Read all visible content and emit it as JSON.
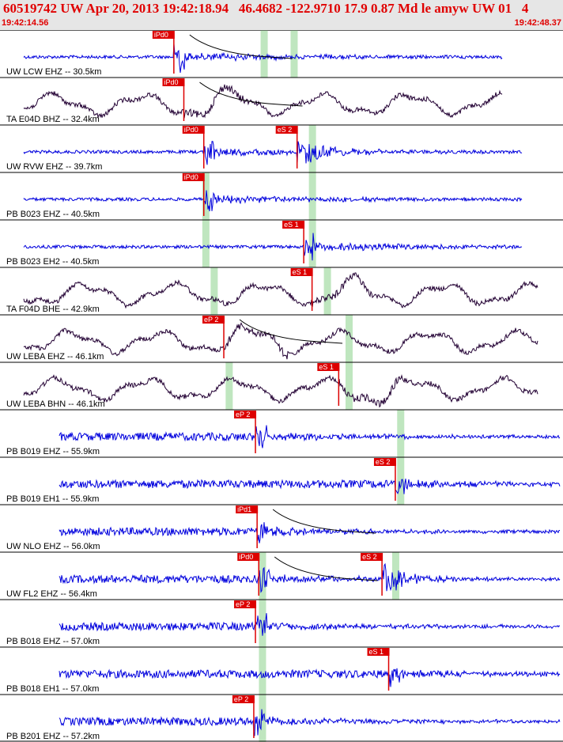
{
  "header": {
    "title": "60519742 UW Apr 20, 2013 19:42:18.94   46.4682 -122.9710 17.9 0.87 Md le amyw UW 01   4",
    "time_start": "19:42:14.56",
    "time_end": "19:42:48.37"
  },
  "colors": {
    "header_text": "#e00000",
    "header_bg": "#e6e6e6",
    "trace_vertical": "#0000dd",
    "trace_horizontal": "#220033",
    "pick": "#dd0000",
    "window": "#bfe6bf"
  },
  "chart_data": {
    "type": "line",
    "x_range_seconds": [
      14.56,
      48.37
    ],
    "traces": [
      {
        "label": "UW LCW EHZ -- 30.5km",
        "component": "vertical",
        "p_label": "iPd0",
        "p_time": 25.0,
        "s_label": "",
        "s_time": null,
        "windows": [
          30.4,
          32.2
        ],
        "coda": true
      },
      {
        "label": "TA E04D BHZ -- 32.4km",
        "component": "horizontal",
        "p_label": "iPd0",
        "p_time": 25.6,
        "s_label": "",
        "s_time": null,
        "windows": [],
        "coda": true
      },
      {
        "label": "UW RVW EHZ -- 39.7km",
        "component": "vertical",
        "p_label": "iPd0",
        "p_time": 26.8,
        "s_label": "eS 2",
        "s_time": 32.4,
        "windows": [
          33.3
        ],
        "coda": false
      },
      {
        "label": "PB B023 EHZ -- 40.5km",
        "component": "vertical",
        "p_label": "iPd0",
        "p_time": 26.8,
        "s_label": "",
        "s_time": null,
        "windows": [
          26.9,
          33.3
        ],
        "coda": false
      },
      {
        "label": "PB B023 EH2 -- 40.5km",
        "component": "horizontal_blue",
        "p_label": "eS 1",
        "p_time": 32.8,
        "s_label": "",
        "s_time": null,
        "windows": [
          26.9,
          33.3
        ],
        "coda": false
      },
      {
        "label": "TA F04D BHE -- 42.9km",
        "component": "horizontal",
        "p_label": "eS 1",
        "p_time": 33.3,
        "s_label": "",
        "s_time": null,
        "windows": [
          27.4,
          34.2
        ],
        "coda": false
      },
      {
        "label": "UW LEBA EHZ -- 46.1km",
        "component": "horizontal",
        "p_label": "eP 2",
        "p_time": 28.0,
        "s_label": "",
        "s_time": null,
        "windows": [
          35.5
        ],
        "coda": true
      },
      {
        "label": "UW LEBA BHN -- 46.1km",
        "component": "horizontal",
        "p_label": "eS 1",
        "p_time": 34.9,
        "s_label": "",
        "s_time": null,
        "windows": [
          28.3,
          35.5
        ],
        "coda": false
      },
      {
        "label": "PB B019 EHZ -- 55.9km",
        "component": "vertical",
        "p_label": "eP 2",
        "p_time": 29.9,
        "s_label": "",
        "s_time": null,
        "windows": [
          38.6
        ],
        "coda": false
      },
      {
        "label": "PB B019 EH1 -- 55.9km",
        "component": "vertical",
        "p_label": "eS 2",
        "p_time": 38.3,
        "s_label": "",
        "s_time": null,
        "windows": [
          38.6
        ],
        "coda": false
      },
      {
        "label": "UW NLO EHZ -- 56.0km",
        "component": "vertical",
        "p_label": "iPd1",
        "p_time": 30.0,
        "s_label": "",
        "s_time": null,
        "windows": [],
        "coda": true
      },
      {
        "label": "UW FL2 EHZ -- 56.4km",
        "component": "vertical",
        "p_label": "iPd0",
        "p_time": 30.1,
        "s_label": "eS 2",
        "s_time": 37.5,
        "windows": [
          30.3,
          38.3
        ],
        "coda": true
      },
      {
        "label": "PB B018 EHZ -- 57.0km",
        "component": "vertical",
        "p_label": "eP 2",
        "p_time": 29.9,
        "s_label": "",
        "s_time": null,
        "windows": [
          30.3
        ],
        "coda": false
      },
      {
        "label": "PB B018 EH1 -- 57.0km",
        "component": "vertical",
        "p_label": "eS 1",
        "p_time": 37.9,
        "s_label": "",
        "s_time": null,
        "windows": [
          30.3
        ],
        "coda": false
      },
      {
        "label": "PB B201 EHZ -- 57.2km",
        "component": "vertical",
        "p_label": "eP 2",
        "p_time": 29.8,
        "s_label": "",
        "s_time": null,
        "windows": [
          30.3
        ],
        "coda": false
      }
    ]
  }
}
